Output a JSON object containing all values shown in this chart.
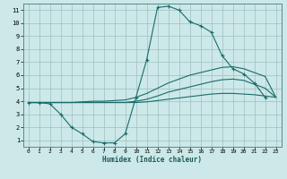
{
  "background_color": "#cce8e8",
  "grid_color": "#9fbfbf",
  "line_color": "#1a6b6b",
  "xlabel": "Humidex (Indice chaleur)",
  "xlim": [
    -0.5,
    23.5
  ],
  "ylim": [
    0.5,
    11.5
  ],
  "xticks": [
    0,
    1,
    2,
    3,
    4,
    5,
    6,
    7,
    8,
    9,
    10,
    11,
    12,
    13,
    14,
    15,
    16,
    17,
    18,
    19,
    20,
    21,
    22,
    23
  ],
  "yticks": [
    1,
    2,
    3,
    4,
    5,
    6,
    7,
    8,
    9,
    10,
    11
  ],
  "series": [
    {
      "x": [
        0,
        1,
        2,
        3,
        4,
        5,
        6,
        7,
        8,
        9,
        10,
        11,
        12,
        13,
        14,
        15,
        16,
        17,
        18,
        19,
        20,
        21,
        22
      ],
      "y": [
        3.9,
        3.9,
        3.8,
        3.0,
        2.0,
        1.5,
        0.9,
        0.8,
        0.8,
        1.5,
        4.3,
        7.2,
        11.2,
        11.3,
        11.0,
        10.1,
        9.8,
        9.3,
        7.5,
        6.5,
        6.1,
        5.4,
        4.3
      ],
      "marker": true
    },
    {
      "x": [
        0,
        1,
        2,
        3,
        4,
        5,
        6,
        7,
        8,
        9,
        10,
        11,
        12,
        13,
        14,
        15,
        16,
        17,
        18,
        19,
        20,
        21,
        22,
        23
      ],
      "y": [
        3.9,
        3.9,
        3.9,
        3.9,
        3.9,
        3.95,
        4.0,
        4.0,
        4.05,
        4.1,
        4.3,
        4.6,
        5.0,
        5.4,
        5.7,
        6.0,
        6.2,
        6.4,
        6.6,
        6.65,
        6.5,
        6.2,
        5.9,
        4.3
      ],
      "marker": false
    },
    {
      "x": [
        0,
        1,
        2,
        3,
        4,
        5,
        6,
        7,
        8,
        9,
        10,
        11,
        12,
        13,
        14,
        15,
        16,
        17,
        18,
        19,
        20,
        21,
        22,
        23
      ],
      "y": [
        3.9,
        3.9,
        3.9,
        3.9,
        3.9,
        3.9,
        3.9,
        3.9,
        3.9,
        3.9,
        4.0,
        4.15,
        4.4,
        4.7,
        4.9,
        5.1,
        5.3,
        5.5,
        5.65,
        5.7,
        5.6,
        5.3,
        5.0,
        4.3
      ],
      "marker": false
    },
    {
      "x": [
        0,
        1,
        2,
        3,
        4,
        5,
        6,
        7,
        8,
        9,
        10,
        11,
        12,
        13,
        14,
        15,
        16,
        17,
        18,
        19,
        20,
        21,
        22,
        23
      ],
      "y": [
        3.9,
        3.9,
        3.9,
        3.9,
        3.9,
        3.9,
        3.9,
        3.9,
        3.9,
        3.9,
        3.9,
        3.95,
        4.05,
        4.15,
        4.25,
        4.35,
        4.45,
        4.55,
        4.6,
        4.6,
        4.55,
        4.5,
        4.4,
        4.3
      ],
      "marker": false
    }
  ]
}
